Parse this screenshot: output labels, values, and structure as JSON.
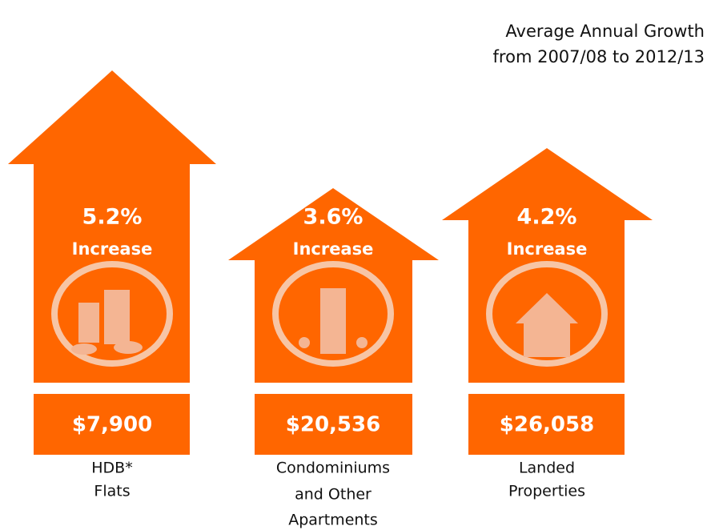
{
  "header": {
    "title_lines": [
      "Average Annual Growth",
      "from 2007/08 to 2012/13"
    ]
  },
  "items": [
    {
      "growth": "5.2%",
      "label": "Increase",
      "amount": "$7,900",
      "name_lines": [
        "HDB*",
        "Flats"
      ]
    },
    {
      "growth": "3.6%",
      "label": "Increase",
      "amount": "$20,536",
      "name_lines": [
        "Condominiums",
        "and Other",
        "Apartments"
      ]
    },
    {
      "growth": "4.2%",
      "label": "Increase",
      "amount": "$26,058",
      "name_lines": [
        "Landed",
        "Properties"
      ]
    }
  ]
}
